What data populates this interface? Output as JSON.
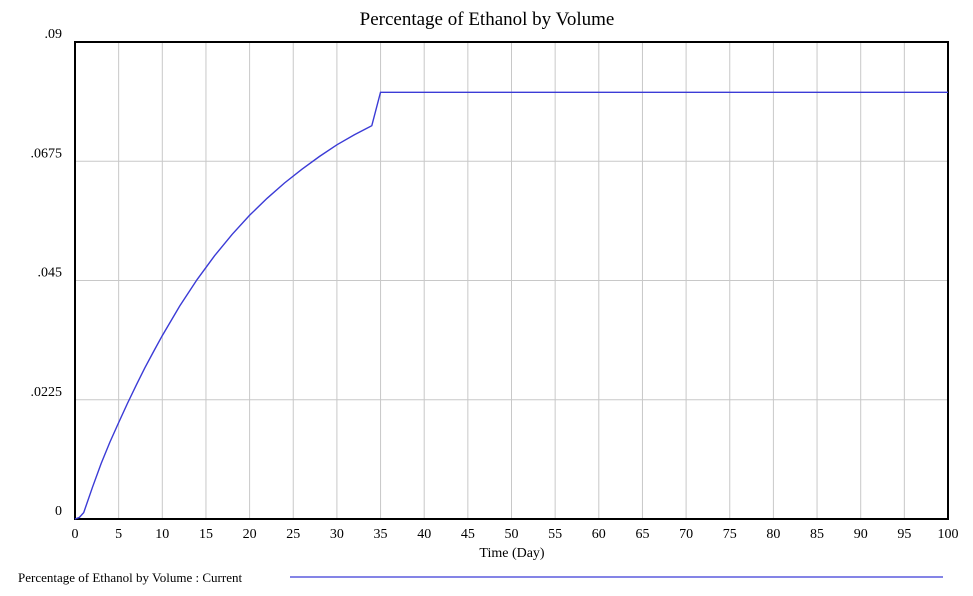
{
  "chart_data": {
    "type": "line",
    "title": "Percentage of Ethanol by Volume",
    "xlabel": "Time (Day)",
    "ylabel": "",
    "xlim": [
      0,
      100
    ],
    "ylim": [
      0,
      0.09
    ],
    "x_ticks": [
      0,
      5,
      10,
      15,
      20,
      25,
      30,
      35,
      40,
      45,
      50,
      55,
      60,
      65,
      70,
      75,
      80,
      85,
      90,
      95,
      100
    ],
    "x_tick_labels": [
      "0",
      "5",
      "10",
      "15",
      "20",
      "25",
      "30",
      "35",
      "40",
      "45",
      "50",
      "55",
      "60",
      "65",
      "70",
      "75",
      "80",
      "85",
      "90",
      "95",
      "100"
    ],
    "y_ticks": [
      0,
      0.0225,
      0.045,
      0.0675,
      0.09
    ],
    "y_tick_labels": [
      "0",
      ".0225",
      ".045",
      ".0675",
      ".09"
    ],
    "grid": true,
    "legend_position": "bottom",
    "series": [
      {
        "name": "Percentage of Ethanol by Volume : Current",
        "color": "#3b3bd6",
        "x": [
          0,
          0.5,
          1,
          2,
          3,
          4,
          5,
          6,
          7,
          8,
          9,
          10,
          12,
          14,
          16,
          18,
          20,
          22,
          24,
          26,
          28,
          30,
          32,
          34,
          35,
          40,
          50,
          60,
          70,
          80,
          90,
          100
        ],
        "y": [
          0,
          0.0003,
          0.0012,
          0.006,
          0.0105,
          0.0145,
          0.0182,
          0.0218,
          0.0252,
          0.0285,
          0.0316,
          0.0346,
          0.0402,
          0.0452,
          0.0497,
          0.0537,
          0.0573,
          0.0605,
          0.0634,
          0.066,
          0.0684,
          0.0706,
          0.0725,
          0.0742,
          0.0805,
          0.0805,
          0.0805,
          0.0805,
          0.0805,
          0.0805,
          0.0805,
          0.0805
        ]
      }
    ]
  },
  "legend": {
    "label": "Percentage of Ethanol by Volume : Current"
  }
}
